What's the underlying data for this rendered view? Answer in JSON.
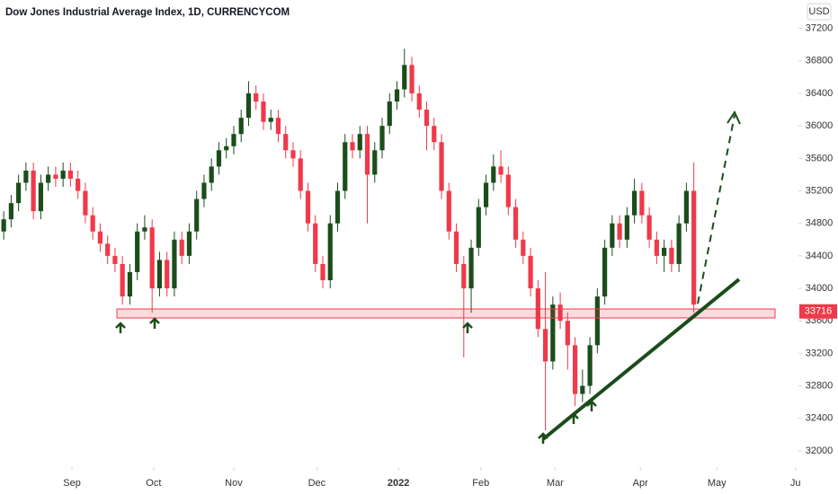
{
  "chart_data": {
    "type": "candlestick",
    "title": "Dow Jones Industrial Average Index, 1D, CURRENCYCOM",
    "currency": "USD",
    "up_color": "#1b4d1b",
    "down_color": "#f0394a",
    "open": [
      34700,
      34850,
      35050,
      35300,
      35450,
      34950,
      35300,
      35400,
      35350,
      35450,
      35350,
      35200,
      34900,
      34700,
      34550,
      34400,
      34300,
      33900,
      34200,
      34700,
      34750,
      34000,
      34350,
      34000,
      34600,
      34400,
      34700,
      35100,
      35300,
      35500,
      35700,
      35750,
      35900,
      36100,
      36400,
      36300,
      36050,
      36100,
      35900,
      35700,
      35600,
      35200,
      34800,
      34300,
      34100,
      34800,
      35200,
      35800,
      35700,
      35900,
      35400,
      35700,
      36000,
      36300,
      36450,
      36750,
      36400,
      36200,
      36000,
      35800,
      35200,
      34700,
      34300,
      34000,
      34500,
      35000,
      35300,
      35500,
      35400,
      35000,
      34600,
      34400,
      34000,
      33500,
      33100,
      33800,
      33600,
      33300,
      32700,
      32800,
      33300,
      33900,
      34500,
      34800,
      34600,
      34900,
      35200,
      34900,
      34600,
      34400,
      34500,
      34300,
      34800,
      35200
    ],
    "high": [
      34950,
      35150,
      35400,
      35550,
      35550,
      35400,
      35500,
      35500,
      35550,
      35550,
      35450,
      35300,
      35000,
      34800,
      34650,
      34500,
      34400,
      34300,
      34800,
      34900,
      34850,
      34450,
      34450,
      34700,
      34700,
      34800,
      35200,
      35400,
      35600,
      35800,
      35850,
      36000,
      36200,
      36550,
      36500,
      36400,
      36200,
      36200,
      36000,
      35800,
      35700,
      35300,
      34900,
      34400,
      34900,
      35300,
      35900,
      35900,
      36000,
      36000,
      35800,
      36100,
      36400,
      36550,
      36950,
      36850,
      36500,
      36300,
      36100,
      35900,
      35300,
      34800,
      34400,
      34600,
      35100,
      35400,
      35650,
      35700,
      35500,
      35100,
      34700,
      34500,
      34100,
      34200,
      33900,
      33950,
      33700,
      33400,
      33000,
      33400,
      34000,
      34600,
      34900,
      34900,
      35000,
      35350,
      35300,
      35000,
      34700,
      34600,
      34600,
      34900,
      35300,
      35550
    ],
    "low": [
      34600,
      34750,
      34950,
      35200,
      34850,
      34850,
      35200,
      35250,
      35250,
      35250,
      35100,
      34800,
      34600,
      34450,
      34300,
      34200,
      33800,
      33800,
      34100,
      34600,
      33700,
      33900,
      33900,
      33900,
      34300,
      34300,
      34600,
      35000,
      35200,
      35400,
      35600,
      35650,
      35800,
      36000,
      36200,
      35950,
      35950,
      35800,
      35600,
      35500,
      35100,
      34700,
      34200,
      34000,
      34000,
      34700,
      35100,
      35600,
      35600,
      34800,
      35300,
      35600,
      35900,
      36200,
      36350,
      36300,
      36100,
      35700,
      35700,
      35100,
      34600,
      34200,
      33150,
      33700,
      34400,
      34900,
      35200,
      35300,
      34900,
      34500,
      34300,
      33900,
      33400,
      32250,
      33000,
      33500,
      33000,
      32550,
      32600,
      32700,
      33200,
      33800,
      34400,
      34500,
      34500,
      34800,
      34800,
      34500,
      34300,
      34200,
      34200,
      34200,
      34700,
      33700
    ],
    "close": [
      34850,
      35050,
      35300,
      35450,
      34950,
      35300,
      35400,
      35350,
      35450,
      35350,
      35200,
      34900,
      34700,
      34550,
      34400,
      34300,
      33900,
      34200,
      34700,
      34750,
      34000,
      34350,
      34000,
      34600,
      34400,
      34700,
      35100,
      35300,
      35500,
      35700,
      35750,
      35900,
      36100,
      36400,
      36300,
      36050,
      36100,
      35900,
      35700,
      35600,
      35200,
      34800,
      34300,
      34100,
      34800,
      35200,
      35800,
      35700,
      35900,
      35400,
      35700,
      36000,
      36300,
      36450,
      36750,
      36400,
      36200,
      36000,
      35800,
      35200,
      34700,
      34300,
      34000,
      34500,
      35000,
      35300,
      35500,
      35400,
      35000,
      34600,
      34400,
      34000,
      33500,
      33100,
      33800,
      33600,
      33300,
      32700,
      32800,
      33300,
      33900,
      34500,
      34800,
      34600,
      34900,
      35200,
      34900,
      34600,
      34400,
      34500,
      34300,
      34800,
      35200,
      33800
    ],
    "last_price": 33716,
    "ylim": [
      31800,
      37550
    ],
    "yticks": [
      32000,
      32400,
      32800,
      33200,
      33600,
      34000,
      34400,
      34800,
      35200,
      35600,
      36000,
      36400,
      36800,
      37200
    ],
    "xlim": [
      0,
      107.6
    ],
    "xticks": [
      {
        "value": 9.7,
        "label": "Sep"
      },
      {
        "value": 20.7,
        "label": "Oct"
      },
      {
        "value": 31.5,
        "label": "Nov"
      },
      {
        "value": 42.7,
        "label": "Dec"
      },
      {
        "value": 53.7,
        "label": "2022"
      },
      {
        "value": 64.8,
        "label": "Feb"
      },
      {
        "value": 74.8,
        "label": "Mar"
      },
      {
        "value": 86.3,
        "label": "Apr"
      },
      {
        "value": 96.6,
        "label": "May"
      },
      {
        "value": 107.2,
        "label": "Ju"
      }
    ]
  }
}
